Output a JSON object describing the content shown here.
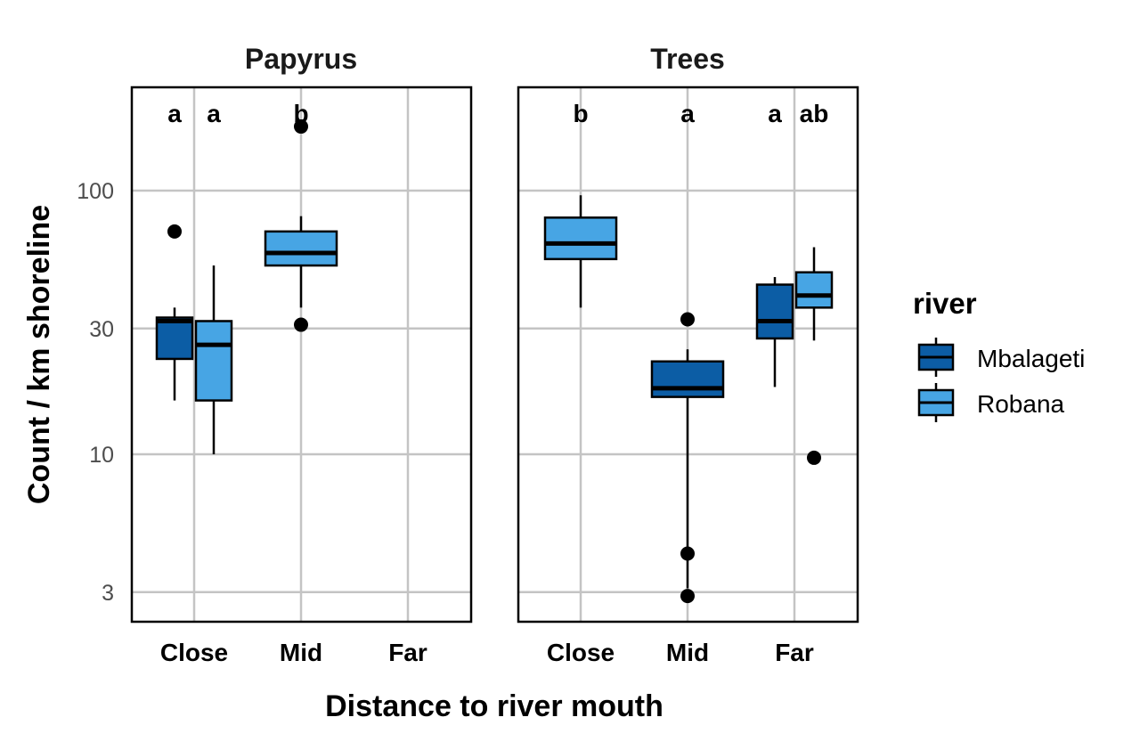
{
  "chart_data": {
    "type": "box",
    "xlabel": "Distance to river mouth",
    "ylabel": "Count / km shoreline",
    "yscale": "log",
    "ylim": [
      2.4,
      220
    ],
    "yticks": [
      3,
      10,
      30,
      100
    ],
    "ytick_labels": [
      "3",
      "10",
      "30",
      "100"
    ],
    "categories": [
      "Close",
      "Mid",
      "Far"
    ],
    "grid": true,
    "legend": {
      "title": "river",
      "placement": "right",
      "entries": [
        {
          "name": "Mbalageti",
          "color": "#0c5da5"
        },
        {
          "name": "Robana",
          "color": "#47a5e4"
        }
      ]
    },
    "panels": [
      {
        "title": "Papyrus",
        "letters": [
          {
            "category": "Close",
            "series": "Mbalageti",
            "text": "a"
          },
          {
            "category": "Close",
            "series": "Robana",
            "text": "a"
          },
          {
            "category": "Mid",
            "series": "Robana",
            "text": "b"
          }
        ],
        "boxes": [
          {
            "category": "Close",
            "series": "Mbalageti",
            "whisker_low": 16,
            "q1": 23,
            "median": 32,
            "q3": 33,
            "whisker_high": 36,
            "outliers": [
              70
            ]
          },
          {
            "category": "Close",
            "series": "Robana",
            "whisker_low": 10,
            "q1": 16,
            "median": 26,
            "q3": 32,
            "whisker_high": 52,
            "outliers": []
          },
          {
            "category": "Mid",
            "series": "Robana",
            "whisker_low": 36,
            "q1": 52,
            "median": 58,
            "q3": 70,
            "whisker_high": 80,
            "outliers": [
              31,
              175
            ]
          }
        ]
      },
      {
        "title": "Trees",
        "letters": [
          {
            "category": "Close",
            "series": "Robana",
            "text": "b"
          },
          {
            "category": "Mid",
            "series": "Mbalageti",
            "text": "a"
          },
          {
            "category": "Far",
            "series": "Mbalageti",
            "text": "a"
          },
          {
            "category": "Far",
            "series": "Robana",
            "text": "ab"
          }
        ],
        "boxes": [
          {
            "category": "Close",
            "series": "Robana",
            "whisker_low": 36,
            "q1": 55,
            "median": 63,
            "q3": 79,
            "whisker_high": 96,
            "outliers": []
          },
          {
            "category": "Mid",
            "series": "Mbalageti",
            "whisker_low": 3.1,
            "q1": 16.5,
            "median": 17.8,
            "q3": 22.5,
            "whisker_high": 25,
            "outliers": [
              2.9,
              4.2,
              32.5
            ]
          },
          {
            "category": "Far",
            "series": "Mbalageti",
            "whisker_low": 18,
            "q1": 27.5,
            "median": 32,
            "q3": 44,
            "whisker_high": 47,
            "outliers": []
          },
          {
            "category": "Far",
            "series": "Robana",
            "whisker_low": 27,
            "q1": 36,
            "median": 40,
            "q3": 49,
            "whisker_high": 61,
            "outliers": [
              9.7
            ]
          }
        ]
      }
    ]
  }
}
